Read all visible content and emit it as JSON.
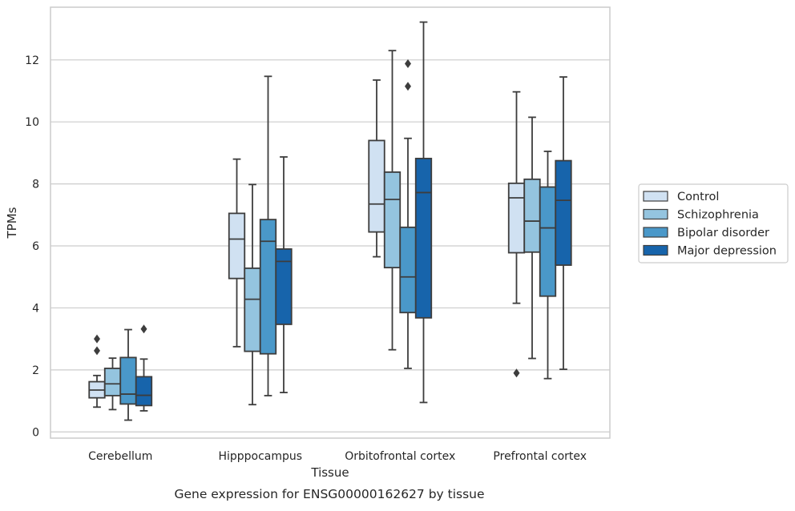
{
  "caption": "Gene expression for ENSG00000162627 by tissue",
  "chart_data": {
    "type": "box",
    "xlabel": "Tissue",
    "ylabel": "TPMs",
    "ylim": [
      -0.2,
      13.7
    ],
    "yticks": [
      0,
      2,
      4,
      6,
      8,
      10,
      12
    ],
    "grid": "horizontal",
    "legend_position": "right",
    "categories": [
      "Cerebellum",
      "Hipppocampus",
      "Orbitofrontal cortex",
      "Prefrontal cortex"
    ],
    "series": [
      {
        "name": "Control",
        "color": "#d0e1f2",
        "boxes": [
          {
            "whislo": 0.8,
            "q1": 1.1,
            "med": 1.35,
            "q3": 1.62,
            "whishi": 1.82,
            "fliers": [
              2.62,
              3.0
            ]
          },
          {
            "whislo": 2.75,
            "q1": 4.95,
            "med": 6.22,
            "q3": 7.05,
            "whishi": 8.8,
            "fliers": []
          },
          {
            "whislo": 5.65,
            "q1": 6.45,
            "med": 7.35,
            "q3": 9.4,
            "whishi": 11.35,
            "fliers": []
          },
          {
            "whislo": 4.15,
            "q1": 5.78,
            "med": 7.55,
            "q3": 8.02,
            "whishi": 10.97,
            "fliers": [
              1.9
            ]
          }
        ]
      },
      {
        "name": "Schizophrenia",
        "color": "#94c4df",
        "boxes": [
          {
            "whislo": 0.72,
            "q1": 1.17,
            "med": 1.55,
            "q3": 2.05,
            "whishi": 2.38,
            "fliers": []
          },
          {
            "whislo": 0.88,
            "q1": 2.6,
            "med": 4.28,
            "q3": 5.28,
            "whishi": 7.98,
            "fliers": []
          },
          {
            "whislo": 2.65,
            "q1": 5.3,
            "med": 7.5,
            "q3": 8.38,
            "whishi": 12.3,
            "fliers": []
          },
          {
            "whislo": 2.37,
            "q1": 5.8,
            "med": 6.8,
            "q3": 8.15,
            "whishi": 10.15,
            "fliers": []
          }
        ]
      },
      {
        "name": "Bipolar disorder",
        "color": "#4a98c9",
        "boxes": [
          {
            "whislo": 0.38,
            "q1": 0.9,
            "med": 1.22,
            "q3": 2.4,
            "whishi": 3.3,
            "fliers": []
          },
          {
            "whislo": 1.17,
            "q1": 2.52,
            "med": 6.15,
            "q3": 6.85,
            "whishi": 11.47,
            "fliers": []
          },
          {
            "whislo": 2.05,
            "q1": 3.85,
            "med": 5.0,
            "q3": 6.6,
            "whishi": 9.47,
            "fliers": [
              11.15,
              11.88
            ]
          },
          {
            "whislo": 1.72,
            "q1": 4.38,
            "med": 6.58,
            "q3": 7.9,
            "whishi": 9.05,
            "fliers": []
          }
        ]
      },
      {
        "name": "Major depression",
        "color": "#1764ab",
        "boxes": [
          {
            "whislo": 0.68,
            "q1": 0.85,
            "med": 1.18,
            "q3": 1.78,
            "whishi": 2.35,
            "fliers": [
              3.32
            ]
          },
          {
            "whislo": 1.27,
            "q1": 3.47,
            "med": 5.5,
            "q3": 5.9,
            "whishi": 8.87,
            "fliers": []
          },
          {
            "whislo": 0.95,
            "q1": 3.68,
            "med": 7.72,
            "q3": 8.82,
            "whishi": 13.22,
            "fliers": []
          },
          {
            "whislo": 2.02,
            "q1": 5.38,
            "med": 7.47,
            "q3": 8.75,
            "whishi": 11.45,
            "fliers": []
          }
        ]
      }
    ]
  }
}
